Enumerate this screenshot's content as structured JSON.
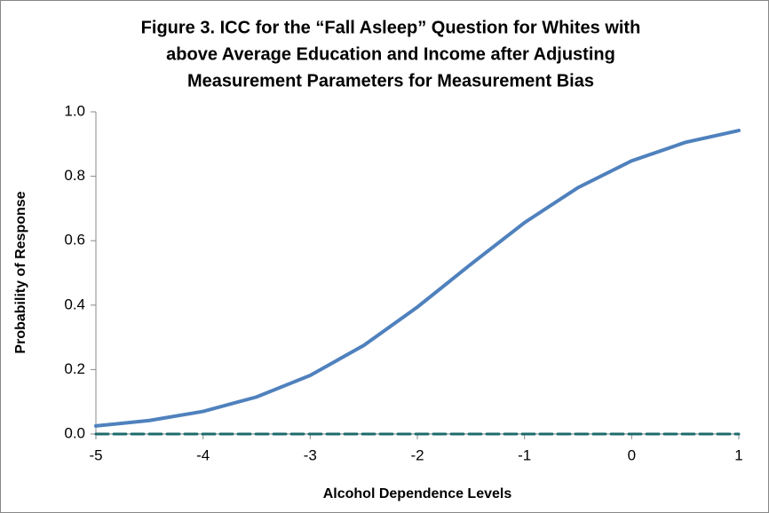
{
  "chart_data": {
    "type": "line",
    "title": [
      "Figure 3. ICC for the “Fall Asleep” Question for Whites with",
      "above Average Education and Income after Adjusting",
      "Measurement Parameters for Measurement Bias"
    ],
    "x_label": "Alcohol Dependence Levels",
    "y_label": "Probability of Response",
    "x": [
      -5,
      -4.5,
      -4,
      -3.5,
      -3,
      -2.5,
      -2,
      -1.5,
      -1,
      -0.5,
      0,
      0.5,
      1
    ],
    "series": [
      {
        "color": "#4f81bd",
        "dashed": false,
        "values": [
          0.025,
          0.042,
          0.07,
          0.115,
          0.182,
          0.275,
          0.394,
          0.527,
          0.656,
          0.765,
          0.848,
          0.905,
          0.942
        ]
      },
      {
        "color": "#1d6b6b",
        "dashed": true,
        "values": [
          0,
          0,
          0,
          0,
          0,
          0,
          0,
          0,
          0,
          0,
          0,
          0,
          0
        ]
      }
    ],
    "xlim": [
      -5,
      1
    ],
    "xticks": [
      -5,
      -4,
      -3,
      -2,
      -1,
      0,
      1
    ],
    "ylim": [
      0,
      1
    ],
    "yticks": [
      {
        "value": 0,
        "label": "0.0"
      },
      {
        "value": 0.2,
        "label": "0.2"
      },
      {
        "value": 0.4,
        "label": "0.4"
      },
      {
        "value": 0.6,
        "label": "0.6"
      },
      {
        "value": 0.8,
        "label": "0.8"
      },
      {
        "value": 1,
        "label": "1.0"
      }
    ],
    "grid": false
  }
}
